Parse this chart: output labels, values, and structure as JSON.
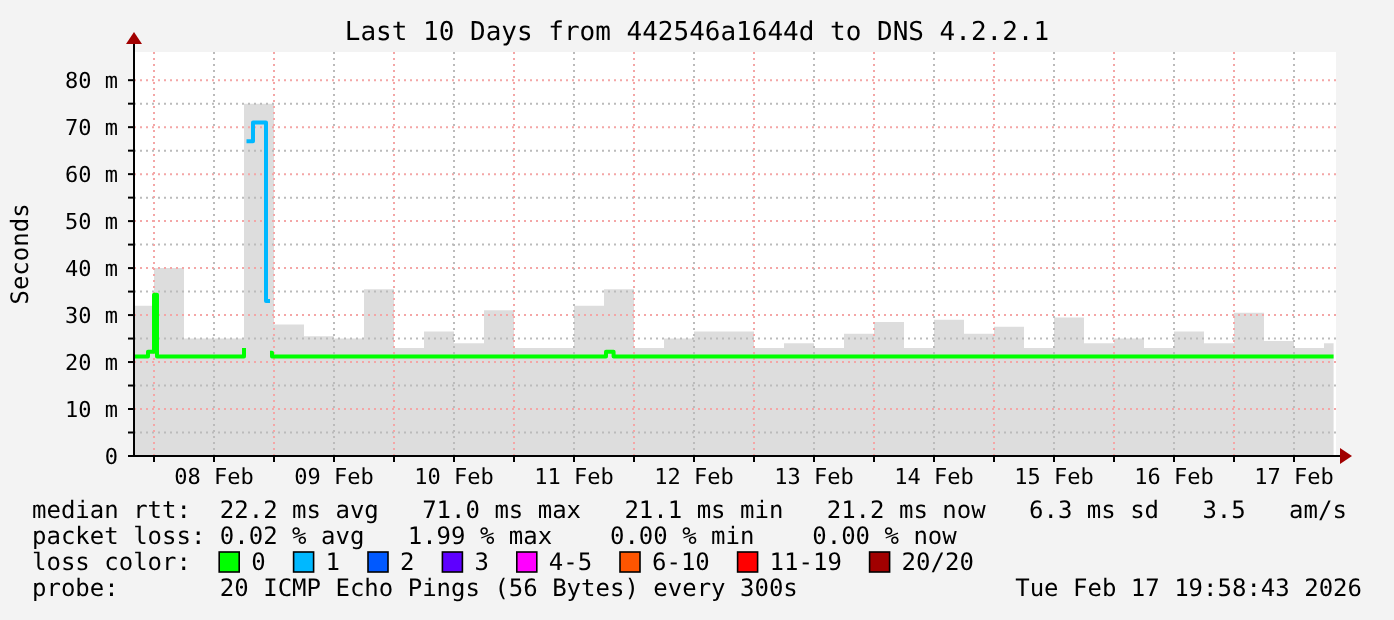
{
  "chart_data": {
    "type": "step",
    "title": "Last 10 Days from 442546a1644d to DNS 4.2.2.1",
    "ylabel": "Seconds",
    "xlim": [
      "2026-02-07T20:00",
      "2026-02-17T20:24"
    ],
    "xticks": [
      {
        "value": "2026-02-08T00:00",
        "label": null
      },
      {
        "value": "2026-02-08T12:00",
        "label": "08 Feb"
      },
      {
        "value": "2026-02-09T00:00",
        "label": null
      },
      {
        "value": "2026-02-09T12:00",
        "label": "09 Feb"
      },
      {
        "value": "2026-02-10T00:00",
        "label": null
      },
      {
        "value": "2026-02-10T12:00",
        "label": "10 Feb"
      },
      {
        "value": "2026-02-11T00:00",
        "label": null
      },
      {
        "value": "2026-02-11T12:00",
        "label": "11 Feb"
      },
      {
        "value": "2026-02-12T00:00",
        "label": null
      },
      {
        "value": "2026-02-12T12:00",
        "label": "12 Feb"
      },
      {
        "value": "2026-02-13T00:00",
        "label": null
      },
      {
        "value": "2026-02-13T12:00",
        "label": "13 Feb"
      },
      {
        "value": "2026-02-14T00:00",
        "label": null
      },
      {
        "value": "2026-02-14T12:00",
        "label": "14 Feb"
      },
      {
        "value": "2026-02-15T00:00",
        "label": null
      },
      {
        "value": "2026-02-15T12:00",
        "label": "15 Feb"
      },
      {
        "value": "2026-02-16T00:00",
        "label": null
      },
      {
        "value": "2026-02-16T12:00",
        "label": "16 Feb"
      },
      {
        "value": "2026-02-17T00:00",
        "label": null
      },
      {
        "value": "2026-02-17T12:00",
        "label": "17 Feb"
      }
    ],
    "ylim": [
      0,
      86
    ],
    "yticks": [
      0,
      {
        "value": 5,
        "label": null
      },
      {
        "value": 10,
        "label": "10 m"
      },
      {
        "value": 15,
        "label": null
      },
      {
        "value": 20,
        "label": "20 m"
      },
      {
        "value": 25,
        "label": null
      },
      {
        "value": 30,
        "label": "30 m"
      },
      {
        "value": 35,
        "label": null
      },
      {
        "value": 40,
        "label": "40 m"
      },
      {
        "value": 45,
        "label": null
      },
      {
        "value": 50,
        "label": "50 m"
      },
      {
        "value": 55,
        "label": null
      },
      {
        "value": 60,
        "label": "60 m"
      },
      {
        "value": 65,
        "label": null
      },
      {
        "value": 70,
        "label": "70 m"
      },
      {
        "value": 75,
        "label": null
      },
      {
        "value": 80,
        "label": "80 m"
      }
    ],
    "grid": true,
    "legend": "bottom",
    "legend_title": "loss color:",
    "series": [
      {
        "type": "area",
        "color": "#d4d4d4",
        "x": [
          "2026-02-07T20:00",
          "2026-02-08T00:00",
          "2026-02-08T06:00",
          "2026-02-08T12:00",
          "2026-02-08T18:00",
          "2026-02-09T00:00",
          "2026-02-09T06:00",
          "2026-02-09T12:00",
          "2026-02-09T18:00",
          "2026-02-10T00:00",
          "2026-02-10T06:00",
          "2026-02-10T12:00",
          "2026-02-10T18:00",
          "2026-02-11T00:00",
          "2026-02-11T06:00",
          "2026-02-11T12:00",
          "2026-02-11T18:00",
          "2026-02-12T00:00",
          "2026-02-12T06:00",
          "2026-02-12T12:00",
          "2026-02-12T18:00",
          "2026-02-13T00:00",
          "2026-02-13T06:00",
          "2026-02-13T12:00",
          "2026-02-13T18:00",
          "2026-02-14T00:00",
          "2026-02-14T06:00",
          "2026-02-14T12:00",
          "2026-02-14T18:00",
          "2026-02-15T00:00",
          "2026-02-15T06:00",
          "2026-02-15T12:00",
          "2026-02-15T18:00",
          "2026-02-16T00:00",
          "2026-02-16T06:00",
          "2026-02-16T12:00",
          "2026-02-16T18:00",
          "2026-02-17T00:00",
          "2026-02-17T06:00",
          "2026-02-17T12:00",
          "2026-02-17T18:00",
          "2026-02-17T19:55"
        ],
        "values": [
          32,
          40,
          25,
          25,
          75,
          28,
          25.5,
          25,
          35.5,
          23,
          26.5,
          24,
          31,
          23,
          23,
          32,
          35.5,
          23,
          25,
          26.5,
          26.5,
          23,
          24,
          23,
          26,
          28.5,
          23,
          29,
          26,
          27.5,
          23,
          29.5,
          24,
          25,
          23,
          26.5,
          24,
          30.5,
          24.5,
          23,
          24,
          24
        ]
      },
      {
        "name": "0",
        "color": "#00ff00",
        "x": [
          "2026-02-07T20:00",
          "2026-02-07T22:48",
          "2026-02-08T00:00",
          "2026-02-08T00:36",
          "2026-02-08T18:00",
          "2026-02-08T18:30",
          "2026-02-08T23:12",
          "2026-02-08T23:36",
          "2026-02-11T18:24",
          "2026-02-11T19:55",
          "2026-02-17T19:55"
        ],
        "values": [
          21.2,
          22.2,
          34.3,
          21.2,
          23,
          null,
          22,
          21.2,
          22.2,
          21.2,
          21.2
        ]
      },
      {
        "name": "1",
        "color": "#00b8ff",
        "x": [
          "2026-02-08T18:30",
          "2026-02-08T19:48",
          "2026-02-08T22:24",
          "2026-02-08T23:12"
        ],
        "values": [
          67,
          71,
          33,
          33
        ]
      },
      {
        "name": "2",
        "color": "#0059ff"
      },
      {
        "name": "3",
        "color": "#5e00ff"
      },
      {
        "name": "4-5",
        "color": "#ff00ff"
      },
      {
        "name": "6-10",
        "color": "#ff5500"
      },
      {
        "name": "11-19",
        "color": "#ff0000"
      },
      {
        "name": "20/20",
        "color": "#a10000"
      }
    ],
    "annotations": [
      "median rtt:  22.2 ms avg   71.0 ms max   21.1 ms min   21.2 ms now   6.3 ms sd   3.5   am/s",
      "packet loss: 0.02 % avg   1.99 % max    0.00 % min    0.00 % now",
      "probe:       20 ICMP Echo Pings (56 Bytes) every 300s",
      "Tue Feb 17 19:58:43 2026"
    ]
  }
}
